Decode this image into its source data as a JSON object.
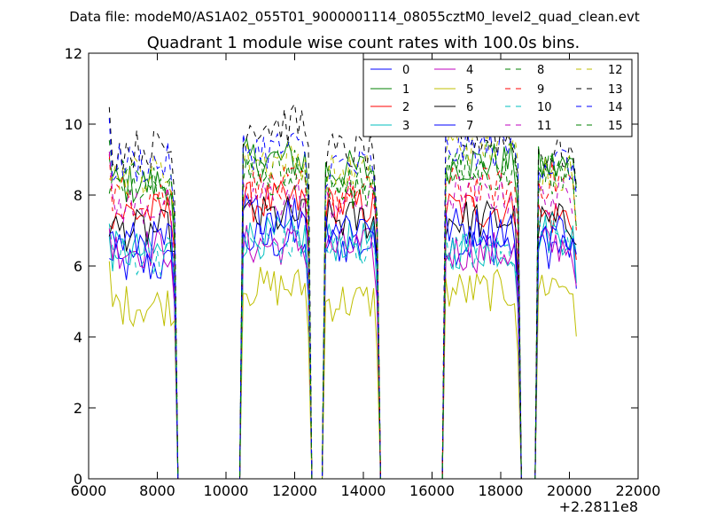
{
  "chart_data": {
    "type": "line",
    "suptitle": "Data file: modeM0/AS1A02_055T01_9000001114_08055cztM0_level2_quad_clean.evt",
    "title": "Quadrant 1 module wise count rates with 100.0s bins.",
    "xlabel": "",
    "ylabel": "",
    "x_offset_label": "+2.2811e8",
    "xlim": [
      6000,
      22000
    ],
    "ylim": [
      0,
      12
    ],
    "xticks": [
      6000,
      8000,
      10000,
      12000,
      14000,
      16000,
      18000,
      20000,
      22000
    ],
    "yticks": [
      0,
      2,
      4,
      6,
      8,
      10,
      12
    ],
    "grid": false,
    "legend_position": "top-right",
    "x_units_note": "x values are offsets from 2.2811e8 as printed on axis",
    "segments": [
      [
        6600,
        8500
      ],
      [
        10500,
        12400
      ],
      [
        12900,
        14400
      ],
      [
        16400,
        18500
      ],
      [
        19100,
        20200
      ]
    ],
    "gap_points": [
      8600,
      10400,
      12500,
      12800,
      14500,
      16300,
      18600,
      19000
    ],
    "series": [
      {
        "name": "0",
        "color": "#0000ff",
        "dashed": false,
        "levels": [
          6.0,
          6.7,
          6.6,
          6.6,
          6.5
        ]
      },
      {
        "name": "1",
        "color": "#008000",
        "dashed": false,
        "levels": [
          8.3,
          9.0,
          8.7,
          8.9,
          8.8
        ]
      },
      {
        "name": "2",
        "color": "#ff0000",
        "dashed": false,
        "levels": [
          7.5,
          7.8,
          7.7,
          7.6,
          7.4
        ]
      },
      {
        "name": "3",
        "color": "#00bfbf",
        "dashed": false,
        "levels": [
          6.4,
          6.8,
          6.7,
          6.5,
          6.9
        ]
      },
      {
        "name": "4",
        "color": "#bf00bf",
        "dashed": false,
        "levels": [
          6.5,
          6.6,
          6.5,
          6.4,
          6.6
        ]
      },
      {
        "name": "5",
        "color": "#bfbf00",
        "dashed": false,
        "levels": [
          4.9,
          5.4,
          5.0,
          5.3,
          5.5
        ]
      },
      {
        "name": "6",
        "color": "#000000",
        "dashed": false,
        "levels": [
          7.0,
          7.4,
          7.3,
          7.3,
          7.2
        ]
      },
      {
        "name": "7",
        "color": "#0000ff",
        "dashed": false,
        "levels": [
          6.7,
          7.5,
          7.2,
          7.1,
          7.0
        ]
      },
      {
        "name": "8",
        "color": "#008000",
        "dashed": true,
        "levels": [
          8.5,
          8.8,
          8.3,
          9.0,
          8.6
        ]
      },
      {
        "name": "9",
        "color": "#ff0000",
        "dashed": true,
        "levels": [
          8.0,
          8.2,
          8.0,
          8.2,
          8.4
        ]
      },
      {
        "name": "10",
        "color": "#00bfbf",
        "dashed": true,
        "levels": [
          6.3,
          6.6,
          6.5,
          6.4,
          7.0
        ]
      },
      {
        "name": "11",
        "color": "#bf00bf",
        "dashed": true,
        "levels": [
          7.7,
          7.9,
          7.8,
          8.0,
          7.9
        ]
      },
      {
        "name": "12",
        "color": "#bfbf00",
        "dashed": true,
        "levels": [
          8.6,
          9.0,
          8.6,
          9.4,
          8.7
        ]
      },
      {
        "name": "13",
        "color": "#000000",
        "dashed": true,
        "levels": [
          9.3,
          10.0,
          9.2,
          9.6,
          9.2
        ]
      },
      {
        "name": "14",
        "color": "#0000ff",
        "dashed": true,
        "levels": [
          8.9,
          9.3,
          8.8,
          9.3,
          8.9
        ]
      },
      {
        "name": "15",
        "color": "#008000",
        "dashed": true,
        "levels": [
          8.3,
          8.6,
          8.2,
          8.6,
          8.6
        ]
      }
    ]
  }
}
